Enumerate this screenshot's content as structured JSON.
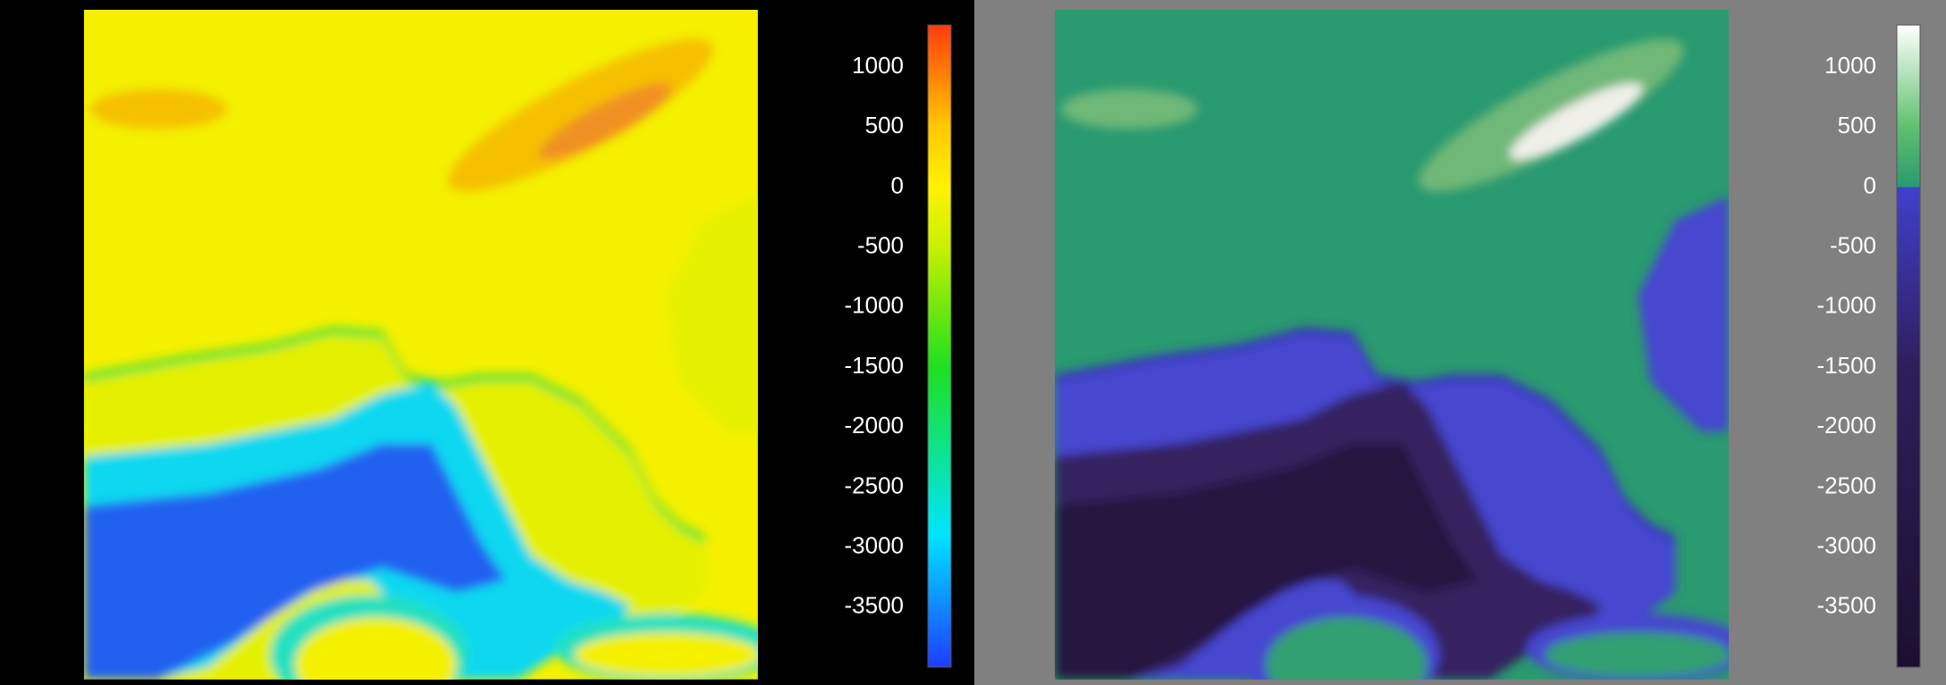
{
  "panels": [
    {
      "colorbar": {
        "lim": [
          -4000,
          1350
        ],
        "ticks": [
          1000,
          500,
          0,
          -500,
          -1000,
          -1500,
          -2000,
          -2500,
          -3000,
          -3500
        ],
        "stops": [
          {
            "value": -4000,
            "color": "#1e3cff"
          },
          {
            "value": -2900,
            "color": "#00e4ff"
          },
          {
            "value": -1500,
            "color": "#1ee01e"
          },
          {
            "value": -500,
            "color": "#c8f000"
          },
          {
            "value": 0,
            "color": "#fff200"
          },
          {
            "value": 500,
            "color": "#ffc800"
          },
          {
            "value": 1350,
            "color": "#ff3c10"
          }
        ]
      }
    },
    {
      "colorbar": {
        "lim": [
          -4000,
          1350
        ],
        "ticks": [
          1000,
          500,
          0,
          -500,
          -1000,
          -1500,
          -2000,
          -2500,
          -3000,
          -3500
        ],
        "stops": [
          {
            "value": -4000,
            "color": "#1c1030"
          },
          {
            "value": -1500,
            "color": "#2e1f5c"
          },
          {
            "value": 0,
            "color": "#4040cc"
          },
          {
            "value": 0,
            "color": "#2a9a70"
          },
          {
            "value": 500,
            "color": "#60c070"
          },
          {
            "value": 1350,
            "color": "#ffffff"
          }
        ]
      }
    }
  ]
}
